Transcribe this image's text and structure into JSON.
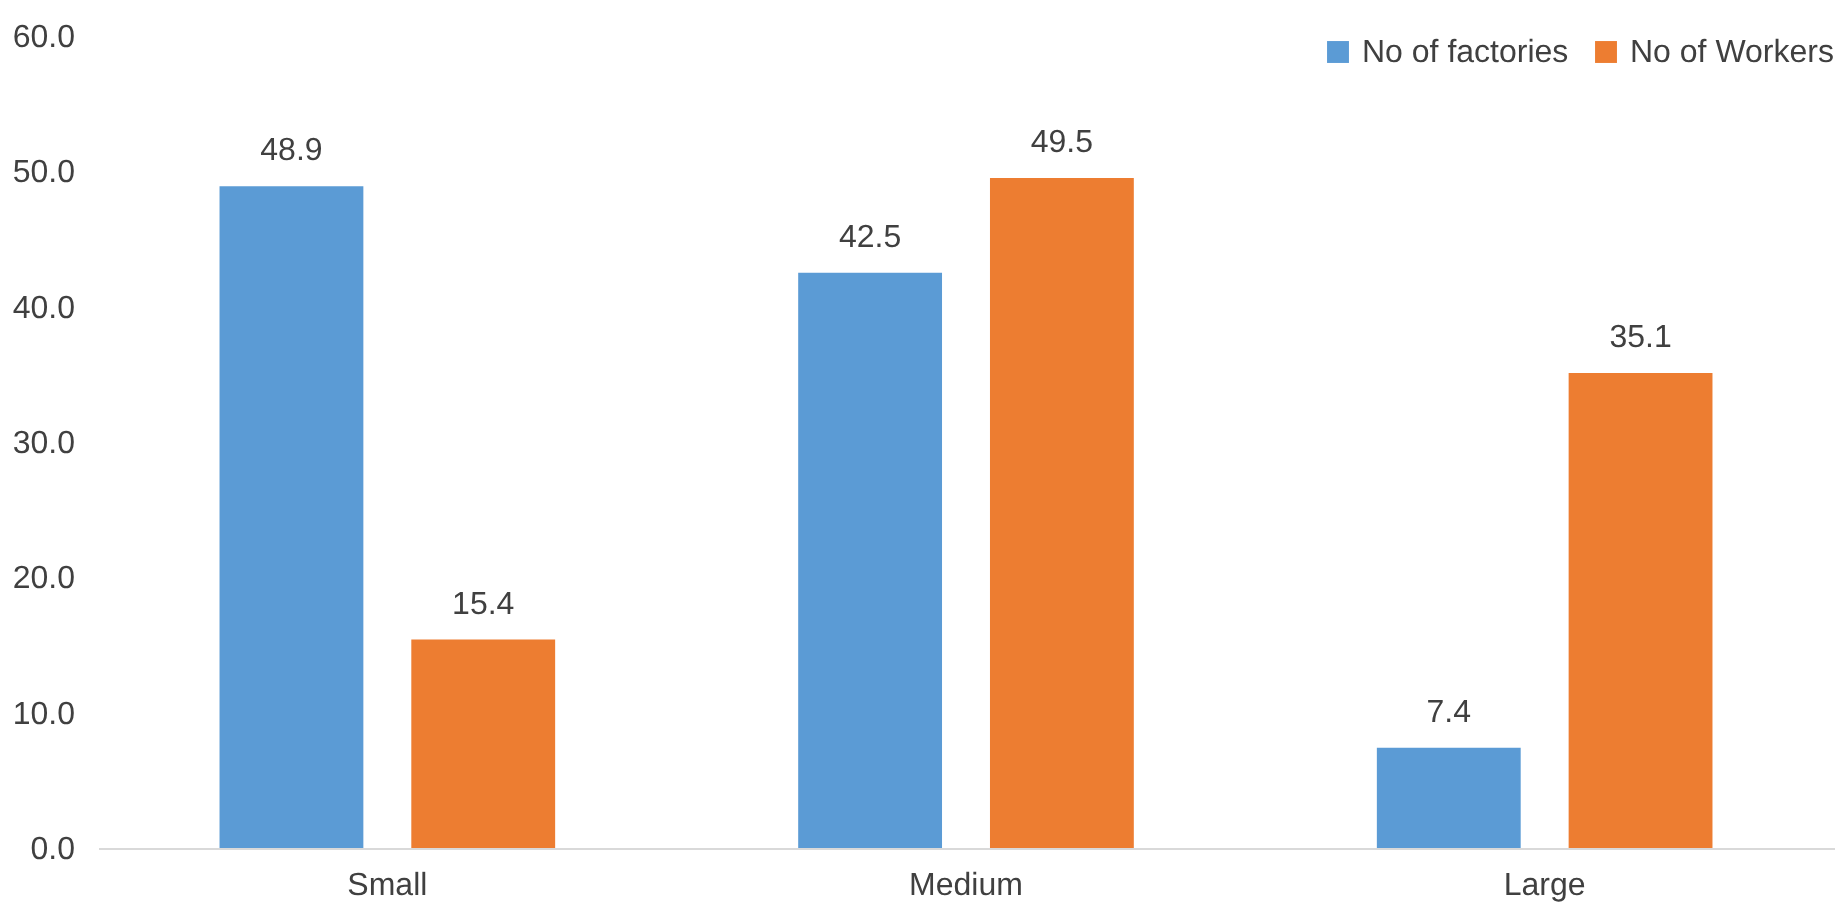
{
  "chart_data": {
    "type": "bar",
    "categories": [
      "Small",
      "Medium",
      "Large"
    ],
    "series": [
      {
        "name": "No of factories",
        "color": "#5b9bd5",
        "values": [
          48.9,
          42.5,
          7.4
        ]
      },
      {
        "name": "No of Workers",
        "color": "#ed7d31",
        "values": [
          15.4,
          49.5,
          35.1
        ]
      }
    ],
    "ylim": [
      0,
      60
    ],
    "yticks": [
      {
        "value": 0,
        "label": "0.0"
      },
      {
        "value": 10,
        "label": "10.0"
      },
      {
        "value": 20,
        "label": "20.0"
      },
      {
        "value": 30,
        "label": "30.0"
      },
      {
        "value": 40,
        "label": "40.0"
      },
      {
        "value": 50,
        "label": "50.0"
      },
      {
        "value": 60,
        "label": "60.0"
      }
    ],
    "data_labels": true,
    "grid": false,
    "legend": "top right"
  }
}
